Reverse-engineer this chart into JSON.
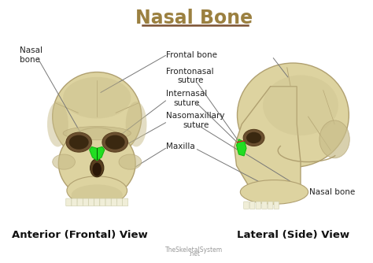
{
  "title": "Nasal Bone",
  "title_color": "#9B8040",
  "title_underline_color": "#7A5030",
  "bg_color": "#ffffff",
  "labels": {
    "nasal_bone_left": "Nasal\nbone",
    "frontal_bone": "Frontal bone",
    "frontonasal_suture": "Frontonasal\nsuture",
    "internasal_suture": "Internasal\nsuture",
    "nasomaxillary_suture": "Nasomaxillary\nsuture",
    "maxilla": "Maxilla",
    "nasal_bone_right": "Nasal bone",
    "anterior_view": "Anterior (Frontal) View",
    "lateral_view": "Lateral (Side) View",
    "watermark": "TheSkeletalSystem\n.net"
  },
  "annotation_color": "#222222",
  "annotation_fontsize": 7.5,
  "view_label_fontsize": 9.5,
  "skull_light": "#DDD3A0",
  "skull_mid": "#C8BD8A",
  "skull_dark": "#B8AC78",
  "skull_shadow": "#A89A60",
  "skull_edge": "#B0A070",
  "eye_dark": "#6B5030",
  "nasal_dark": "#5A4020",
  "green1": "#22DD22",
  "green2": "#11BB11",
  "red_line": "#DD3333",
  "line_color": "#777777",
  "tooth_color": "#F0EED8"
}
